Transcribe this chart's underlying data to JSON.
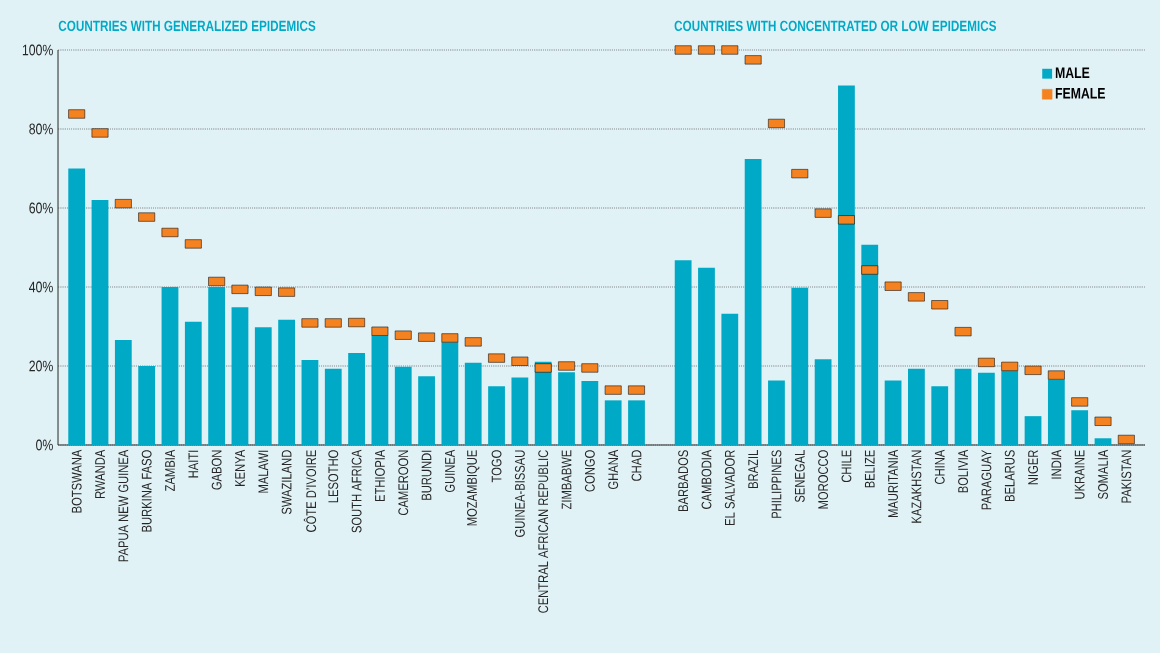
{
  "chart_data": {
    "type": "bar",
    "annotations": [
      "COUNTRIES WITH GENERALIZED EPIDEMICS",
      "COUNTRIES WITH CONCENTRATED OR LOW EPIDEMICS"
    ],
    "categories": [
      "BOTSWANA",
      "RWANDA",
      "PAPUA NEW GUINEA",
      "BURKINA FASO",
      "ZAMBIA",
      "HAITI",
      "GABON",
      "KENYA",
      "MALAWI",
      "SWAZILAND",
      "CÔTE D’IVOIRE",
      "LESOTHO",
      "SOUTH AFRICA",
      "ETHIOPIA",
      "CAMEROON",
      "BURUNDI",
      "GUINEA",
      "MOZAMBIQUE",
      "TOGO",
      "GUINEA-BISSAU",
      "CENTRAL AFRICAN REPUBLIC",
      "ZIMBABWE",
      "CONGO",
      "GHANA",
      "CHAD",
      null,
      "BARBADOS",
      "CAMBODIA",
      "EL SALVADOR",
      "BRAZIL",
      "PHILIPPINES",
      "SENEGAL",
      "MOROCCO",
      "CHILE",
      "BELIZE",
      "MAURITANIA",
      "KAZAKHSTAN",
      "CHINA",
      "BOLIVIA",
      "PARAGUAY",
      "BELARUS",
      "NIGER",
      "INDIA",
      "UKRAINE",
      "SOMALIA",
      "PAKISTAN"
    ],
    "series": [
      {
        "name": "MALE",
        "color": "#00a9c5",
        "values": [
          70,
          62,
          26.6,
          20,
          40,
          31.2,
          40,
          34.9,
          29.8,
          31.7,
          21.5,
          19.3,
          23.3,
          27.7,
          19.8,
          17.4,
          26,
          20.8,
          14.9,
          17.1,
          21.1,
          18.4,
          16.2,
          11.3,
          11.3,
          null,
          46.8,
          44.9,
          33.2,
          72.4,
          16.3,
          39.8,
          21.7,
          91,
          50.7,
          16.3,
          19.3,
          14.9,
          19.3,
          18.3,
          18.8,
          7.3,
          16.6,
          8.8,
          1.7,
          0
        ]
      },
      {
        "name": "FEMALE",
        "type": "scatter",
        "marker": "square",
        "color": "#f58220",
        "values": [
          83.8,
          79,
          61.1,
          57.7,
          53.8,
          50.9,
          41.4,
          39.4,
          38.9,
          38.7,
          30.9,
          30.9,
          31,
          28.8,
          27.8,
          27.3,
          27.1,
          26.1,
          22,
          21.2,
          19.5,
          20,
          19.5,
          13.9,
          13.9,
          null,
          100,
          100,
          100,
          97.5,
          81.4,
          68.7,
          58.7,
          57,
          44.3,
          40.2,
          37.5,
          35.5,
          28.7,
          20.9,
          19.9,
          18.9,
          17.7,
          10.9,
          6,
          1.4
        ]
      }
    ],
    "ylim": [
      0,
      100
    ],
    "yticks": [
      {
        "value": 0,
        "label": "0%"
      },
      {
        "value": 20,
        "label": "20%"
      },
      {
        "value": 40,
        "label": "40%"
      },
      {
        "value": 60,
        "label": "60%"
      },
      {
        "value": 80,
        "label": "80%"
      },
      {
        "value": 100,
        "label": "100%"
      }
    ],
    "grid": "y",
    "legend": "top right"
  }
}
